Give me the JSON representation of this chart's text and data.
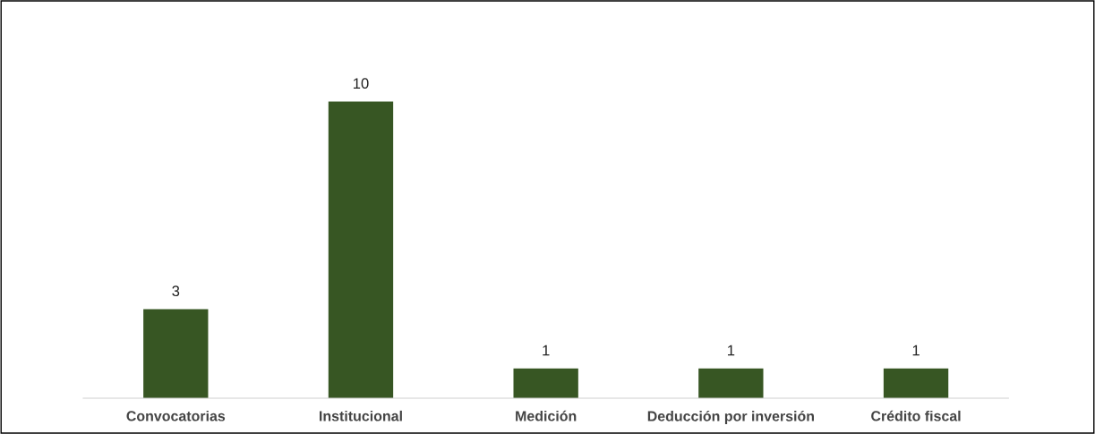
{
  "chart_data": {
    "type": "bar",
    "categories": [
      "Convocatorias",
      "Institucional",
      "Medición",
      "Deducción por inversión",
      "Crédito fiscal"
    ],
    "values": [
      3,
      10,
      1,
      1,
      1
    ],
    "color": "#375623",
    "data_labels": true,
    "tick_labels": "x"
  }
}
